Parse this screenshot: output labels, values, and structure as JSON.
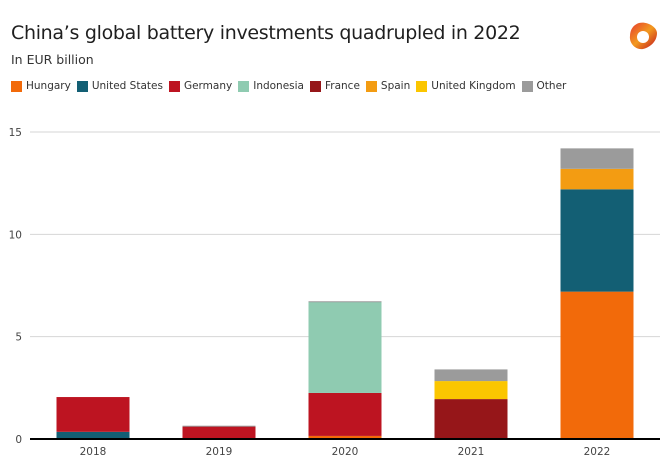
{
  "header": {
    "title": "China’s global battery investments quadrupled in 2022",
    "subtitle": "In EUR billion",
    "logo_icon": "brand-logo-icon"
  },
  "chart_data": {
    "type": "bar",
    "stacked": true,
    "title": "China’s global battery investments quadrupled in 2022",
    "subtitle": "In EUR billion",
    "xlabel": "",
    "ylabel": "In EUR billion",
    "ylim": [
      0,
      15
    ],
    "yticks": [
      0,
      5,
      10,
      15
    ],
    "grid": true,
    "legend_position": "top-left",
    "categories": [
      "2018",
      "2019",
      "2020",
      "2021",
      "2022"
    ],
    "series": [
      {
        "name": "Hungary",
        "color": "#f26a0a",
        "values": [
          0,
          0,
          0.15,
          0,
          7.2
        ]
      },
      {
        "name": "United States",
        "color": "#135f74",
        "values": [
          0.35,
          0,
          0,
          0,
          5.0
        ]
      },
      {
        "name": "Germany",
        "color": "#bd1421",
        "values": [
          1.7,
          0.63,
          2.1,
          0,
          0
        ]
      },
      {
        "name": "Indonesia",
        "color": "#8fcbb1",
        "values": [
          0,
          0,
          4.45,
          0,
          0
        ]
      },
      {
        "name": "France",
        "color": "#961619",
        "values": [
          0,
          0,
          0,
          1.95,
          0
        ]
      },
      {
        "name": "Spain",
        "color": "#f39c12",
        "values": [
          0,
          0,
          0,
          0,
          1.0
        ]
      },
      {
        "name": "United Kingdom",
        "color": "#fbc600",
        "values": [
          0,
          0,
          0,
          0.88,
          0
        ]
      },
      {
        "name": "Other",
        "color": "#9b9b9b",
        "values": [
          0,
          0.02,
          0.03,
          0.57,
          1.0
        ]
      }
    ]
  }
}
